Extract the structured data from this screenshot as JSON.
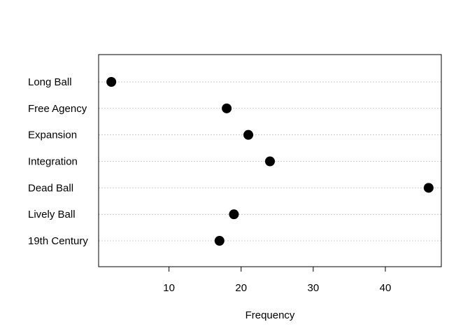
{
  "chart_data": {
    "type": "dotplot",
    "title": "",
    "xlabel": "Frequency",
    "ylabel": "",
    "categories": [
      "19th Century",
      "Lively Ball",
      "Dead Ball",
      "Integration",
      "Expansion",
      "Free Agency",
      "Long Ball"
    ],
    "values": [
      17,
      19,
      46,
      24,
      21,
      18,
      2
    ],
    "xlim": [
      0.24,
      47.76
    ],
    "xticks": [
      10,
      20,
      30,
      40
    ],
    "grid": "horizontal dotted",
    "legend": "none",
    "colors": {
      "points": "#000000",
      "grid": "#bebebe",
      "axis": "#000000"
    }
  }
}
